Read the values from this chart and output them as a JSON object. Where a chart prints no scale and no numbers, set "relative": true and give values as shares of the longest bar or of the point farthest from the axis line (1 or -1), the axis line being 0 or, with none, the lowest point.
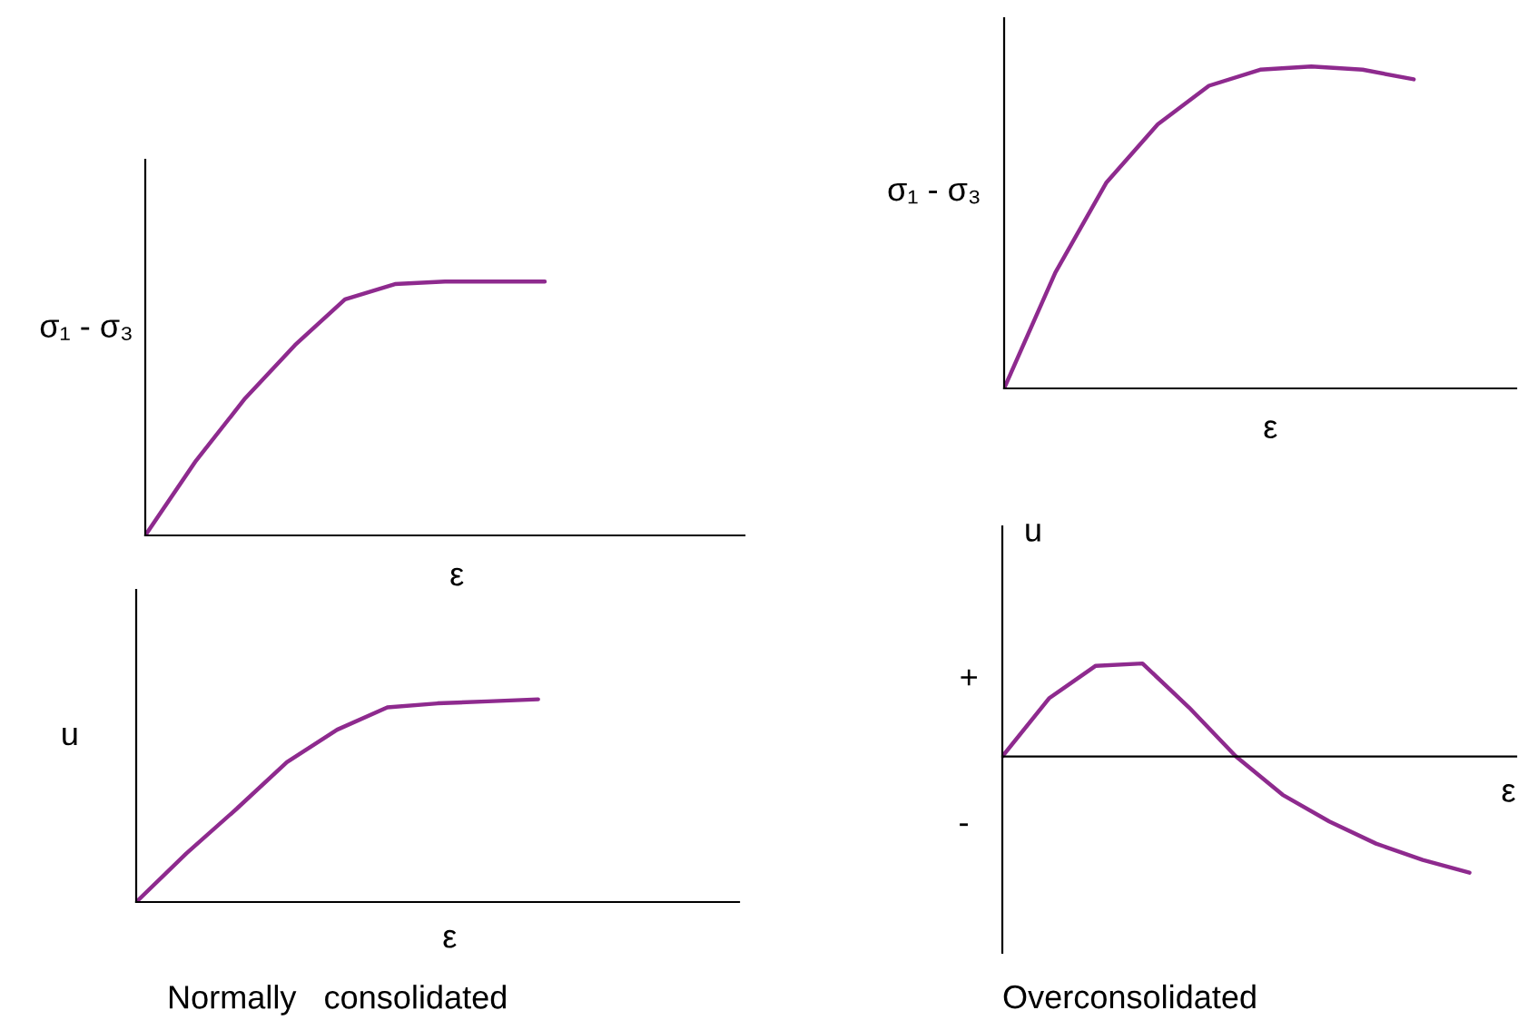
{
  "chart_data": [
    {
      "type": "line",
      "relative": true,
      "ylabel": "σ₁ - σ₃",
      "xlabel": "ε",
      "categories": [
        null,
        null,
        null,
        null,
        null,
        null,
        null,
        null,
        null,
        null,
        null,
        null,
        null
      ],
      "series": [
        {
          "color": "#8e2a8e",
          "values": [
            0,
            0.29,
            0.54,
            0.75,
            0.93,
            0.99,
            1,
            1,
            1,
            null,
            null,
            null,
            null
          ]
        }
      ]
    },
    {
      "type": "line",
      "relative": true,
      "ylabel": "σ₁ - σ₃",
      "xlabel": "ε",
      "categories": [
        null,
        null,
        null,
        null,
        null,
        null,
        null,
        null,
        null,
        null,
        null
      ],
      "series": [
        {
          "color": "#8e2a8e",
          "values": [
            0,
            0.36,
            0.64,
            0.82,
            0.94,
            0.99,
            1,
            0.99,
            0.96,
            null,
            null
          ]
        }
      ]
    },
    {
      "type": "line",
      "relative": true,
      "ylabel": "u",
      "xlabel": "ε",
      "categories": [
        null,
        null,
        null,
        null,
        null,
        null,
        null,
        null,
        null,
        null,
        null,
        null,
        null
      ],
      "series": [
        {
          "color": "#8e2a8e",
          "values": [
            0,
            0.24,
            0.46,
            0.69,
            0.85,
            0.96,
            0.98,
            0.99,
            1,
            null,
            null,
            null,
            null
          ]
        }
      ],
      "annotations": [
        "Normally   consolidated"
      ]
    },
    {
      "type": "line",
      "relative": true,
      "ylabel": "u",
      "xlabel": "ε",
      "categories": [
        null,
        null,
        null,
        null,
        null,
        null,
        null,
        null,
        null,
        null,
        null,
        null
      ],
      "series": [
        {
          "color": "#8e2a8e",
          "values": [
            0,
            0.5,
            0.78,
            0.8,
            0.42,
            0,
            -0.33,
            -0.56,
            -0.75,
            -0.89,
            -1,
            null
          ]
        }
      ],
      "annotations": [
        "+",
        "-",
        "Overconsolidated"
      ]
    }
  ]
}
